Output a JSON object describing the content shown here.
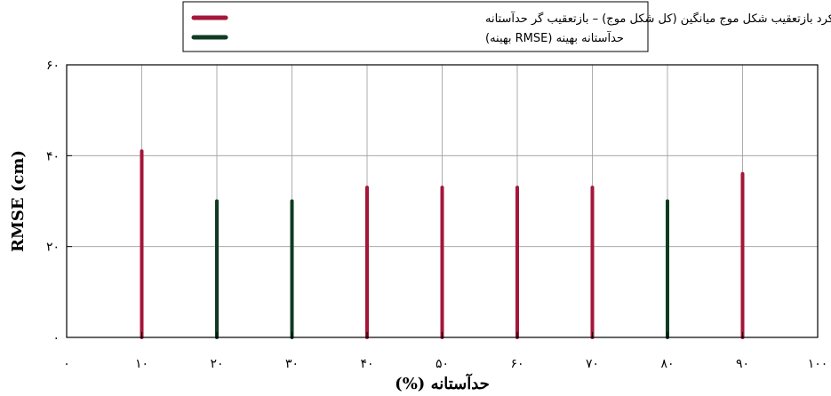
{
  "chart_data": {
    "type": "bar",
    "style": "vertical stem bars",
    "grid": true,
    "legend_placement": "top-center",
    "xlabel": "حدآستانه (%)",
    "ylabel": "RMSE (cm)",
    "xlim": [
      0,
      100
    ],
    "ylim": [
      0,
      60
    ],
    "x_ticks": [
      0,
      10,
      20,
      30,
      40,
      50,
      60,
      70,
      80,
      90,
      100
    ],
    "x_tick_labels": [
      "۰",
      "۱۰",
      "۲۰",
      "۳۰",
      "۴۰",
      "۵۰",
      "۶۰",
      "۷۰",
      "۸۰",
      "۹۰",
      "۱۰۰"
    ],
    "y_ticks": [
      0,
      20,
      40,
      60
    ],
    "y_tick_labels": [
      "۰",
      "۲۰",
      "۴۰",
      "۶۰"
    ],
    "series": [
      {
        "name": "رویکرد بازتعقیب شکل موج میانگین (کل شکل موج) – بازتعقیب گر حدآستانه",
        "color": "#a4163a",
        "x": [
          10,
          40,
          50,
          60,
          70,
          90
        ],
        "values": [
          41,
          33,
          33,
          33,
          33,
          36
        ]
      },
      {
        "name": "حدآستانه بهینه (RMSE بهینه)",
        "color": "#0f3b22",
        "x": [
          20,
          30,
          80
        ],
        "values": [
          30,
          30,
          30
        ]
      }
    ]
  }
}
